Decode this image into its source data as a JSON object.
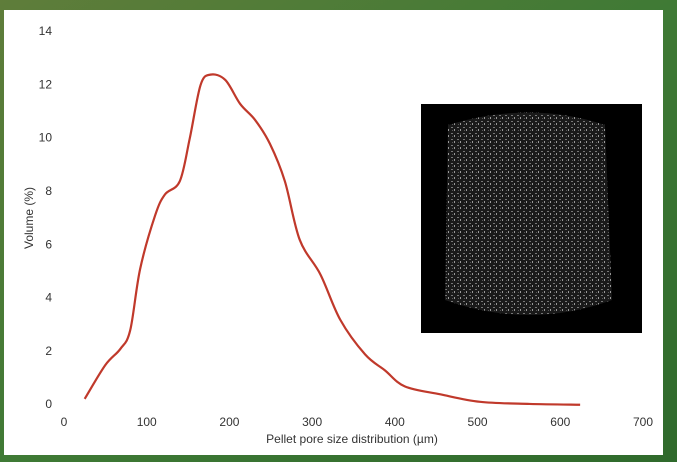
{
  "chart_data": {
    "type": "line",
    "x_label": "Pellet pore size distribution (µm)",
    "y_label": "Volume (%)",
    "xlim": [
      0,
      700
    ],
    "xticks": [
      0,
      100,
      200,
      300,
      400,
      500,
      600,
      700
    ],
    "ylim": [
      0,
      14
    ],
    "yticks": [
      0,
      2,
      4,
      6,
      8,
      10,
      12,
      14
    ],
    "series": [
      {
        "color": "#c0392b",
        "x": [
          25,
          50,
          68,
          80,
          92,
          110,
          122,
          140,
          152,
          165,
          177,
          195,
          213,
          231,
          249,
          267,
          285,
          310,
          334,
          364,
          388,
          412,
          455,
          503,
          563,
          624
        ],
        "values": [
          0.23,
          1.5,
          2.1,
          2.8,
          5.1,
          7.1,
          7.9,
          8.4,
          10,
          12.0,
          12.4,
          12.2,
          11.3,
          10.7,
          9.8,
          8.4,
          6.2,
          4.9,
          3.2,
          1.9,
          1.3,
          0.7,
          0.4,
          0.12,
          0.04,
          0.01
        ]
      }
    ]
  }
}
